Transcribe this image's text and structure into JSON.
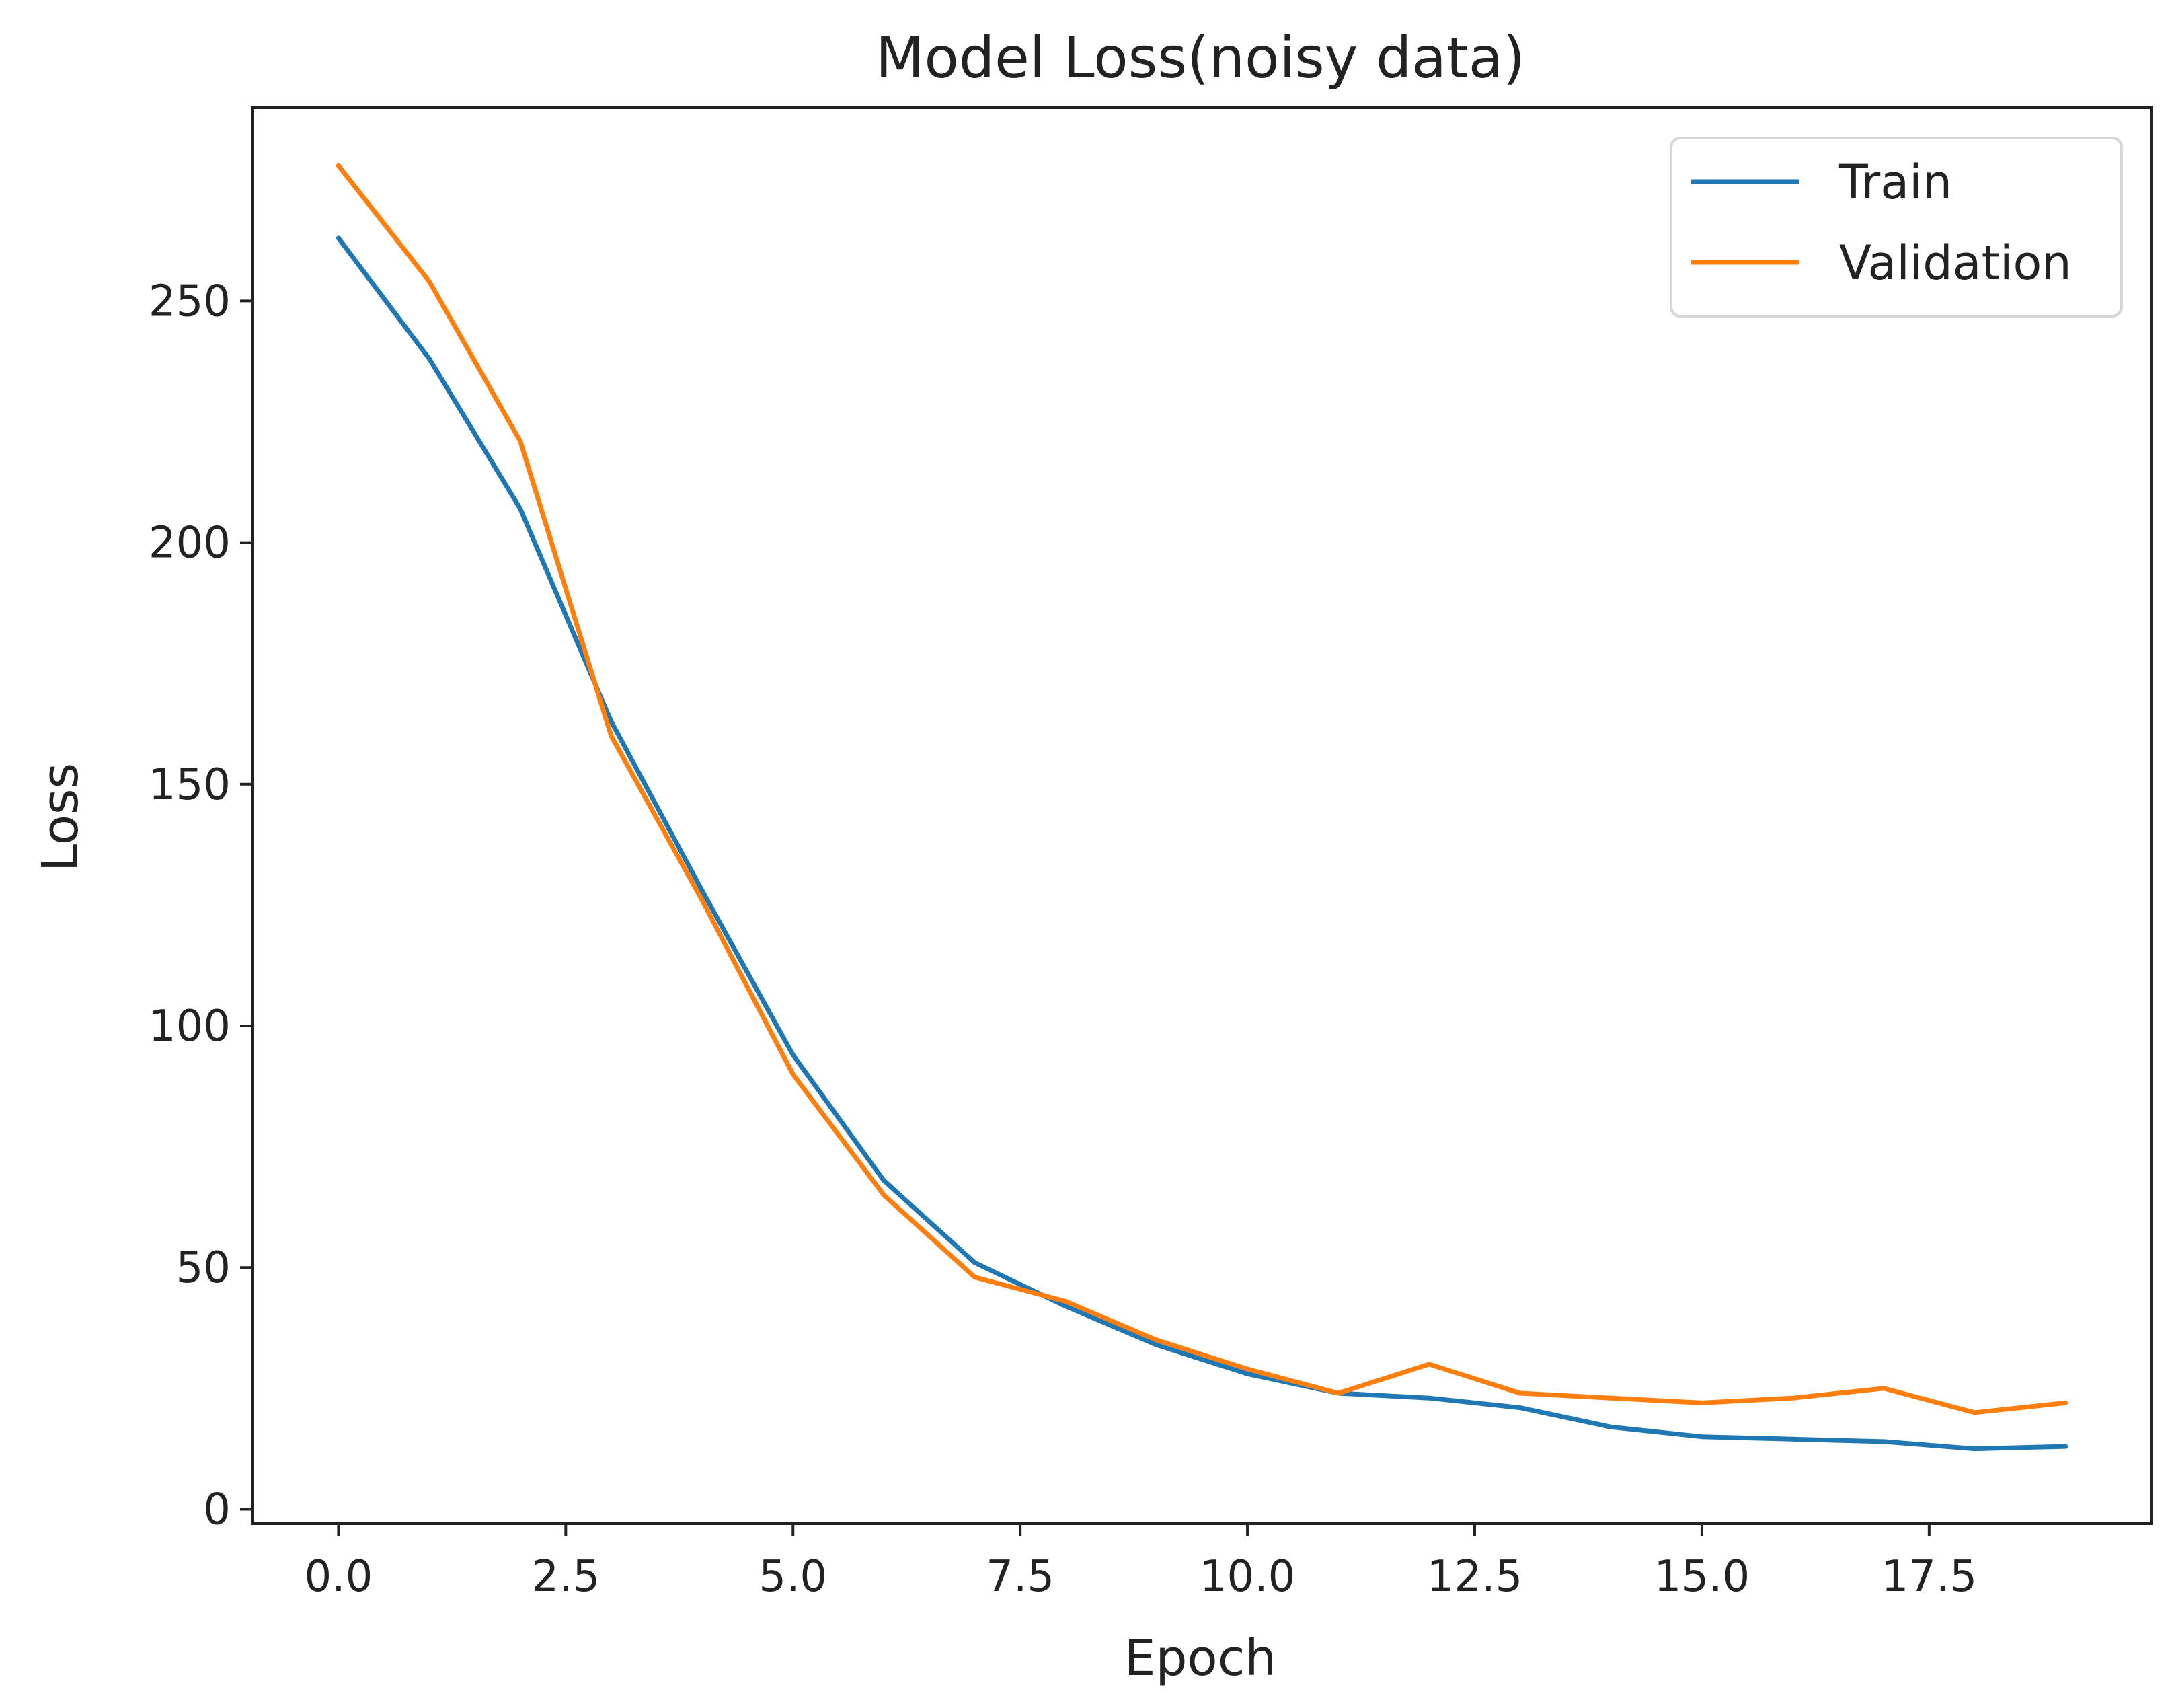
{
  "chart_data": {
    "type": "line",
    "title": "Model Loss(noisy data)",
    "xlabel": "Epoch",
    "ylabel": "Loss",
    "xlim": [
      -0.95,
      19.95
    ],
    "ylim": [
      -3,
      290
    ],
    "xticks": [
      0.0,
      2.5,
      5.0,
      7.5,
      10.0,
      12.5,
      15.0,
      17.5
    ],
    "xtick_labels": [
      "0.0",
      "2.5",
      "5.0",
      "7.5",
      "10.0",
      "12.5",
      "15.0",
      "17.5"
    ],
    "yticks": [
      0,
      50,
      100,
      150,
      200,
      250
    ],
    "ytick_labels": [
      "0",
      "50",
      "100",
      "150",
      "200",
      "250"
    ],
    "grid": false,
    "legend_position": "top-right",
    "x": [
      0,
      1,
      2,
      3,
      4,
      5,
      6,
      7,
      8,
      9,
      10,
      11,
      12,
      13,
      14,
      15,
      16,
      17,
      18,
      19
    ],
    "series": [
      {
        "name": "Train",
        "color": "#1f77b4",
        "values": [
          263,
          238,
          207,
          163,
          128,
          94,
          68,
          51,
          42,
          34,
          28,
          24,
          23,
          21,
          17,
          15,
          14.5,
          14,
          12.5,
          13
        ]
      },
      {
        "name": "Validation",
        "color": "#ff7f0e",
        "values": [
          278,
          254,
          221,
          160,
          126,
          90,
          65,
          48,
          43,
          35,
          29,
          24,
          30,
          24,
          23,
          22,
          23,
          25,
          20,
          22
        ]
      }
    ]
  }
}
